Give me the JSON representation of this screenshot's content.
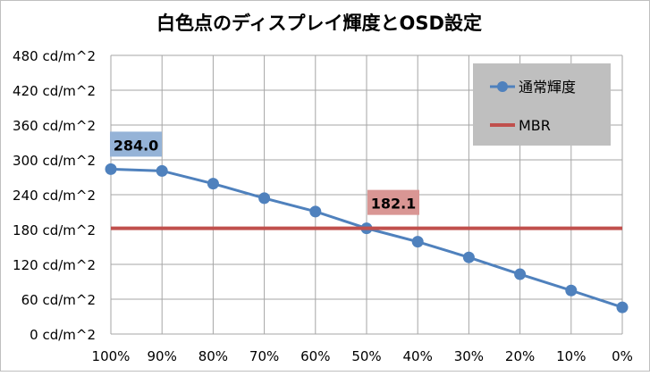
{
  "chart_data": {
    "type": "line",
    "title": "白色点のディスプレイ輝度とOSD設定",
    "xlabel": "",
    "ylabel": "",
    "categories": [
      "100%",
      "90%",
      "80%",
      "70%",
      "60%",
      "50%",
      "40%",
      "30%",
      "20%",
      "10%",
      "0%"
    ],
    "ylim": [
      0,
      480
    ],
    "yticks": [
      0,
      60,
      120,
      180,
      240,
      300,
      360,
      420,
      480
    ],
    "yunit": " cd/m^2",
    "grid": true,
    "legend_position": "top-right",
    "series": [
      {
        "name": "通常輝度",
        "color": "#4f81bd",
        "marker": "circle",
        "values": [
          284.0,
          281,
          259,
          234,
          211,
          182.1,
          159,
          132,
          103,
          75,
          46
        ]
      },
      {
        "name": "MBR",
        "color": "#c0504d",
        "marker": "none",
        "values": [
          182.1,
          182.1,
          182.1,
          182.1,
          182.1,
          182.1,
          182.1,
          182.1,
          182.1,
          182.1,
          182.1
        ]
      }
    ],
    "annotations": [
      {
        "series": 0,
        "index": 0,
        "text": "284.0",
        "bg": "#95b3d7"
      },
      {
        "series": 0,
        "index": 5,
        "text": "182.1",
        "bg": "#d99694"
      }
    ]
  }
}
